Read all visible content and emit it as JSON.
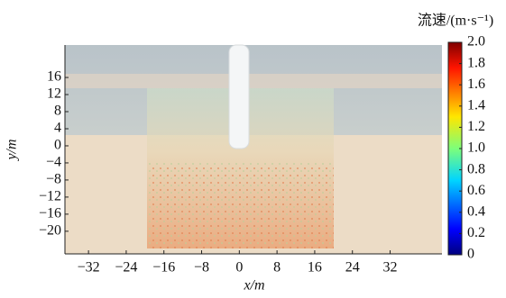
{
  "chart_data": {
    "type": "image",
    "xlabel": "x/m",
    "ylabel": "y/m",
    "xlim": [
      -37,
      43
    ],
    "ylim": [
      -25.3,
      23.6
    ],
    "xticks": [
      {
        "value": -32,
        "label": "−32"
      },
      {
        "value": -24,
        "label": "−24"
      },
      {
        "value": -16,
        "label": "−16"
      },
      {
        "value": -8,
        "label": "−8"
      },
      0,
      8,
      16,
      24,
      32
    ],
    "yticks": [
      {
        "value": -20,
        "label": "−20"
      },
      {
        "value": -16,
        "label": "−16"
      },
      {
        "value": -12,
        "label": "−12"
      },
      {
        "value": -8,
        "label": "−8"
      },
      {
        "value": -4,
        "label": "−4"
      },
      0,
      4,
      8,
      12,
      16
    ],
    "colorbar": {
      "label": "流速/(m·s⁻¹)",
      "lim": [
        0,
        2
      ],
      "ticks": [
        0,
        0.2,
        0.4,
        0.6,
        0.8,
        {
          "value": 1,
          "label": "1.0"
        },
        1.2,
        1.4,
        1.6,
        1.8,
        {
          "value": 2,
          "label": "2.0"
        }
      ]
    }
  }
}
